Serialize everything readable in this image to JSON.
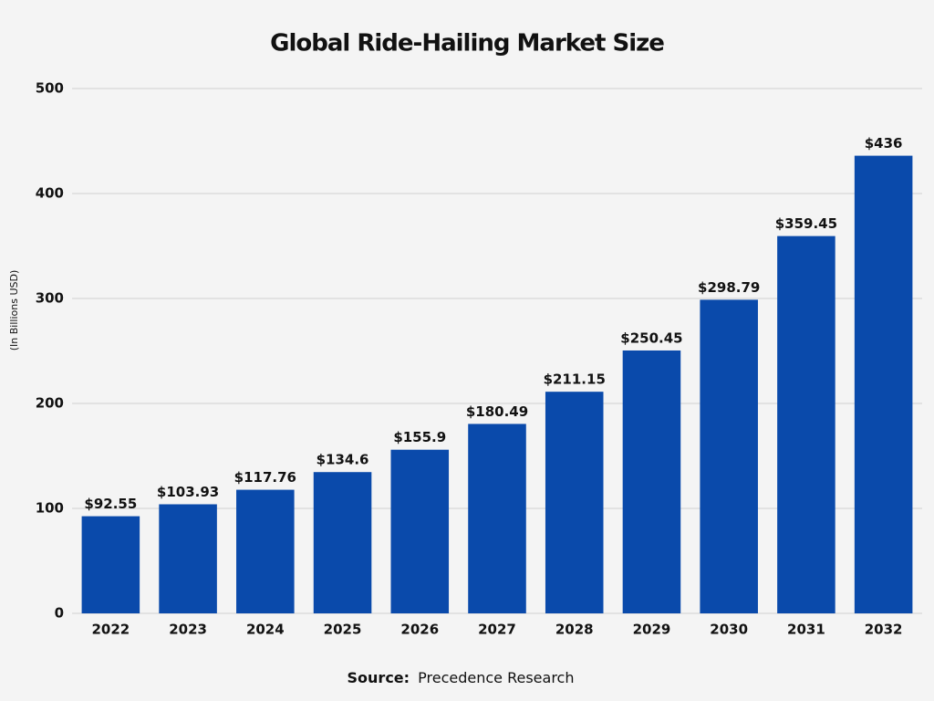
{
  "chart_data": {
    "type": "bar",
    "title": "Global Ride-Hailing Market Size",
    "y_label": "(In Billions USD)",
    "source_label": "Source:",
    "source": "Precedence Research",
    "categories": [
      "2022",
      "2023",
      "2024",
      "2025",
      "2026",
      "2027",
      "2028",
      "2029",
      "2030",
      "2031",
      "2032"
    ],
    "values": [
      92.55,
      103.93,
      117.76,
      134.6,
      155.9,
      180.49,
      211.15,
      250.45,
      298.79,
      359.45,
      436
    ],
    "value_labels": [
      "$92.55",
      "$103.93",
      "$117.76",
      "$134.6",
      "$155.9",
      "$180.49",
      "$211.15",
      "$250.45",
      "$298.79",
      "$359.45",
      "$436"
    ],
    "color": "#0a4aab",
    "ylim": [
      0,
      500
    ],
    "yticks": [
      0,
      100,
      200,
      300,
      400,
      500
    ],
    "grid": true
  }
}
